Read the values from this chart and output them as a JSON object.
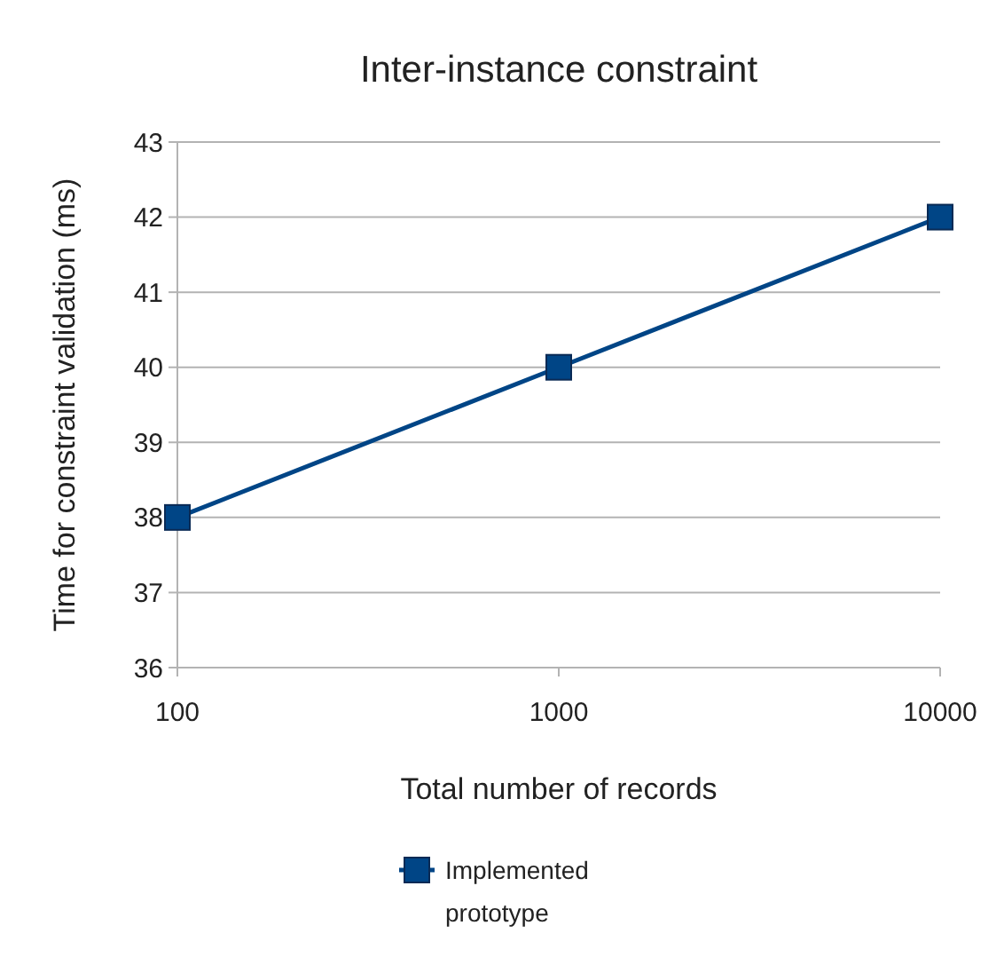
{
  "chart_data": {
    "type": "line",
    "title": "Inter-instance constraint",
    "xlabel": "Total number of records",
    "ylabel": "Time for constraint validation (ms)",
    "x": [
      100,
      1000,
      10000
    ],
    "log": "x",
    "xlim": [
      100,
      10000
    ],
    "xticks": [
      100,
      1000,
      10000
    ],
    "ylim": [
      36,
      43
    ],
    "yticks": [
      36,
      37,
      38,
      39,
      40,
      41,
      42,
      43
    ],
    "grid": "y",
    "legend": "bottom",
    "marker": "square",
    "line_style": "solid",
    "series": [
      {
        "name": "Implemented prototype",
        "color": "#004586",
        "values": [
          38,
          40,
          42
        ]
      }
    ]
  }
}
